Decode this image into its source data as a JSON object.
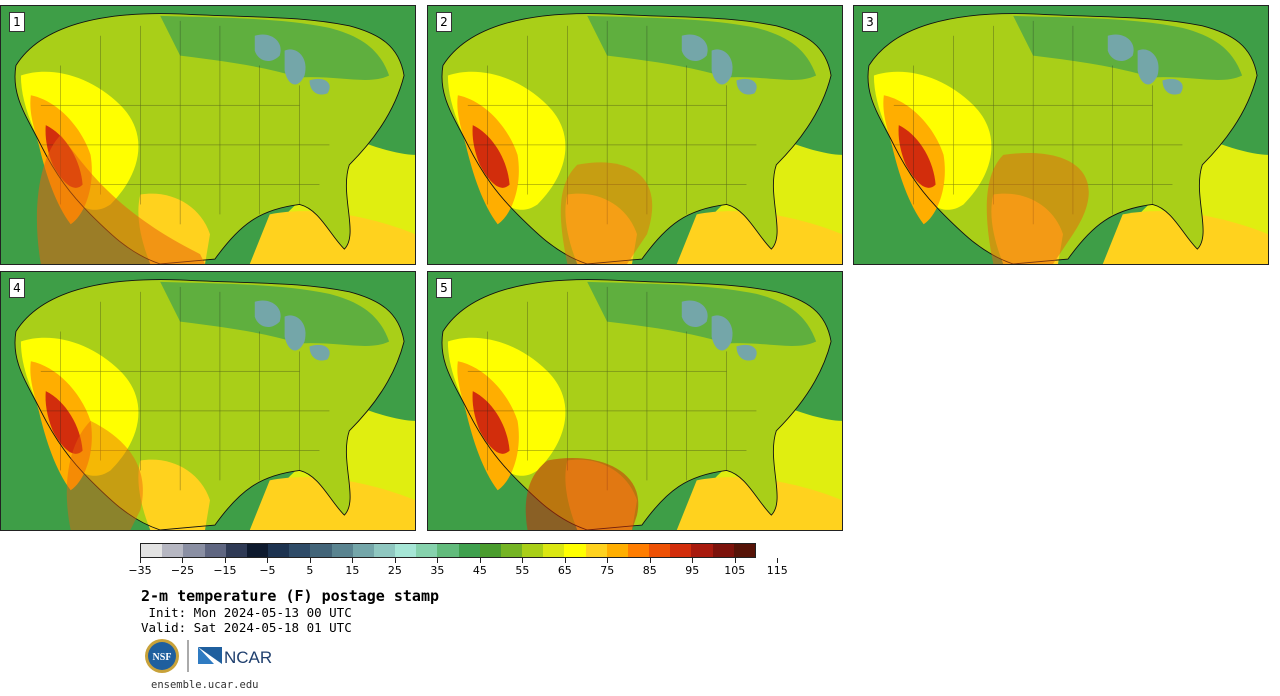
{
  "panels": [
    {
      "label": "1"
    },
    {
      "label": "2"
    },
    {
      "label": "3"
    },
    {
      "label": "4"
    },
    {
      "label": "5"
    }
  ],
  "colorbar": {
    "colors": [
      "#e3e3e3",
      "#b6b7c2",
      "#8a8fa3",
      "#5f6681",
      "#2f3a55",
      "#0e1a2e",
      "#1d3350",
      "#2f4c68",
      "#436579",
      "#5a8490",
      "#74a6a9",
      "#8fc7c0",
      "#a6e6d6",
      "#86d2ad",
      "#62bb7c",
      "#3fa04e",
      "#4a9c2e",
      "#75b424",
      "#a9cf18",
      "#dbe712",
      "#ffff00",
      "#ffd21e",
      "#ffae00",
      "#ff7d00",
      "#ee5105",
      "#d22d0c",
      "#a81a0e",
      "#7c120b",
      "#561307"
    ],
    "tick_labels": [
      "−35",
      "−25",
      "−15",
      "−5",
      "5",
      "15",
      "25",
      "35",
      "45",
      "55",
      "65",
      "75",
      "85",
      "95",
      "105",
      "115"
    ]
  },
  "title": "2-m temperature (F) postage stamp",
  "init_text": " Init: Mon 2024-05-13 00 UTC",
  "valid_text": "Valid: Sat 2024-05-18 01 UTC",
  "logos": {
    "nsf": "NSF",
    "ncar": "NCAR"
  },
  "footer_url": "ensemble.ucar.edu"
}
